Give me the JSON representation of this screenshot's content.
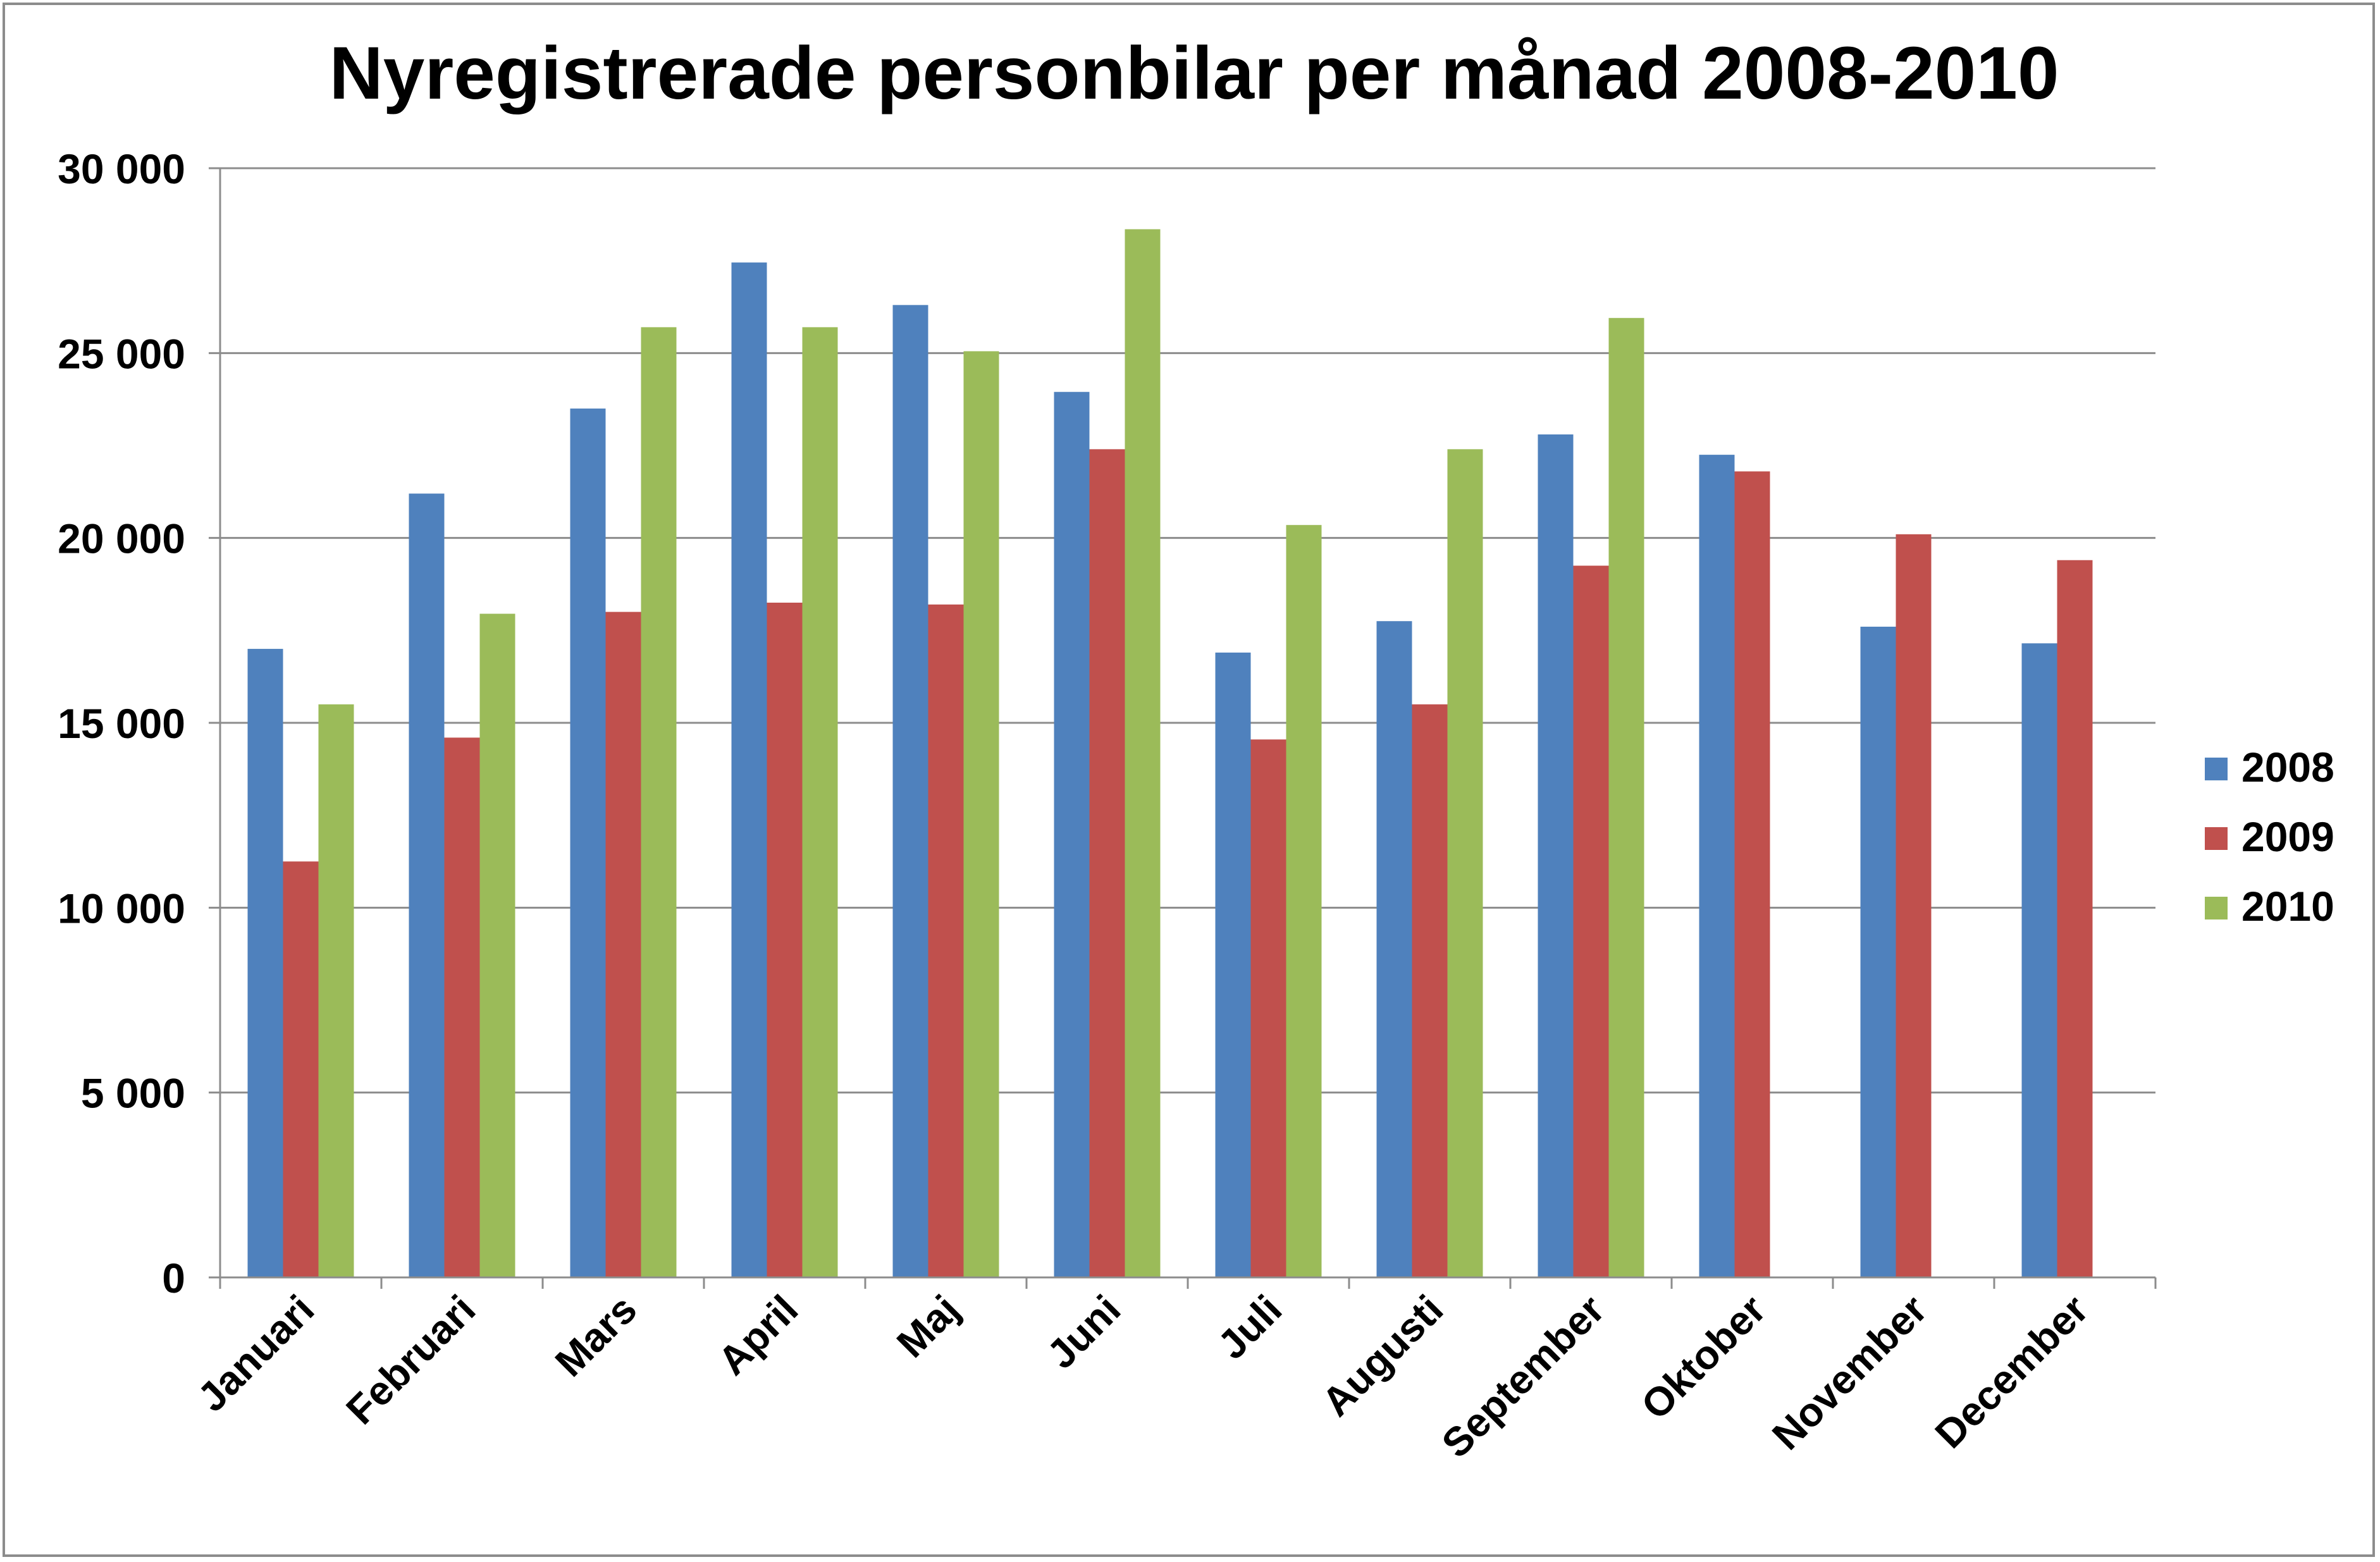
{
  "chart_data": {
    "type": "bar",
    "title": "Nyregistrerade personbilar per månad 2008-2010",
    "xlabel": "",
    "ylabel": "",
    "ylim": [
      0,
      30000
    ],
    "yticks": [
      0,
      5000,
      10000,
      15000,
      20000,
      25000,
      30000
    ],
    "ytick_labels": [
      "0",
      "5 000",
      "10 000",
      "15 000",
      "20 000",
      "25 000",
      "30 000"
    ],
    "grid": true,
    "legend_position": "right",
    "categories": [
      "Januari",
      "Februari",
      "Mars",
      "April",
      "Maj",
      "Juni",
      "Juli",
      "Augusti",
      "September",
      "Oktober",
      "November",
      "December"
    ],
    "series": [
      {
        "name": "2008",
        "color": "#4f81bd",
        "values": [
          17000,
          21200,
          23500,
          27450,
          26300,
          23950,
          16900,
          17750,
          22800,
          22250,
          17600,
          17150
        ]
      },
      {
        "name": "2009",
        "color": "#c0504d",
        "values": [
          11250,
          14600,
          18000,
          18250,
          18200,
          22400,
          14550,
          15500,
          19250,
          21800,
          20100,
          19400
        ]
      },
      {
        "name": "2010",
        "color": "#9bbb59",
        "values": [
          15500,
          17950,
          25700,
          25700,
          25050,
          28350,
          20350,
          22400,
          25950,
          null,
          null,
          null
        ]
      }
    ]
  }
}
